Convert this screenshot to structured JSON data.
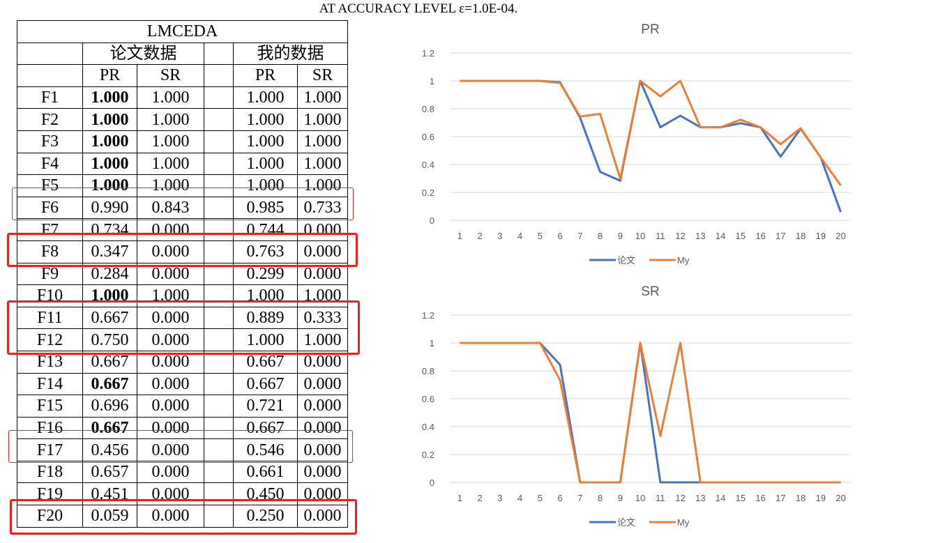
{
  "page_title": "AT ACCURACY LEVEL ε=1.0E-04.",
  "table": {
    "title": "LMCEDA",
    "group_paper": "论文数据",
    "group_mine": "我的数据",
    "col_pr": "PR",
    "col_sr": "SR",
    "rows": [
      {
        "fn": "F1",
        "paper_pr": "1.000",
        "paper_sr": "1.000",
        "my_pr": "1.000",
        "my_sr": "1.000",
        "bold": true
      },
      {
        "fn": "F2",
        "paper_pr": "1.000",
        "paper_sr": "1.000",
        "my_pr": "1.000",
        "my_sr": "1.000",
        "bold": true
      },
      {
        "fn": "F3",
        "paper_pr": "1.000",
        "paper_sr": "1.000",
        "my_pr": "1.000",
        "my_sr": "1.000",
        "bold": true
      },
      {
        "fn": "F4",
        "paper_pr": "1.000",
        "paper_sr": "1.000",
        "my_pr": "1.000",
        "my_sr": "1.000",
        "bold": true
      },
      {
        "fn": "F5",
        "paper_pr": "1.000",
        "paper_sr": "1.000",
        "my_pr": "1.000",
        "my_sr": "1.000",
        "bold": true
      },
      {
        "fn": "F6",
        "paper_pr": "0.990",
        "paper_sr": "0.843",
        "my_pr": "0.985",
        "my_sr": "0.733",
        "bold": false
      },
      {
        "fn": "F7",
        "paper_pr": "0.734",
        "paper_sr": "0.000",
        "my_pr": "0.744",
        "my_sr": "0.000",
        "bold": false
      },
      {
        "fn": "F8",
        "paper_pr": "0.347",
        "paper_sr": "0.000",
        "my_pr": "0.763",
        "my_sr": "0.000",
        "bold": false
      },
      {
        "fn": "F9",
        "paper_pr": "0.284",
        "paper_sr": "0.000",
        "my_pr": "0.299",
        "my_sr": "0.000",
        "bold": false
      },
      {
        "fn": "F10",
        "paper_pr": "1.000",
        "paper_sr": "1.000",
        "my_pr": "1.000",
        "my_sr": "1.000",
        "bold": true
      },
      {
        "fn": "F11",
        "paper_pr": "0.667",
        "paper_sr": "0.000",
        "my_pr": "0.889",
        "my_sr": "0.333",
        "bold": false
      },
      {
        "fn": "F12",
        "paper_pr": "0.750",
        "paper_sr": "0.000",
        "my_pr": "1.000",
        "my_sr": "1.000",
        "bold": false
      },
      {
        "fn": "F13",
        "paper_pr": "0.667",
        "paper_sr": "0.000",
        "my_pr": "0.667",
        "my_sr": "0.000",
        "bold": false
      },
      {
        "fn": "F14",
        "paper_pr": "0.667",
        "paper_sr": "0.000",
        "my_pr": "0.667",
        "my_sr": "0.000",
        "bold": true
      },
      {
        "fn": "F15",
        "paper_pr": "0.696",
        "paper_sr": "0.000",
        "my_pr": "0.721",
        "my_sr": "0.000",
        "bold": false
      },
      {
        "fn": "F16",
        "paper_pr": "0.667",
        "paper_sr": "0.000",
        "my_pr": "0.667",
        "my_sr": "0.000",
        "bold": true
      },
      {
        "fn": "F17",
        "paper_pr": "0.456",
        "paper_sr": "0.000",
        "my_pr": "0.546",
        "my_sr": "0.000",
        "bold": false
      },
      {
        "fn": "F18",
        "paper_pr": "0.657",
        "paper_sr": "0.000",
        "my_pr": "0.661",
        "my_sr": "0.000",
        "bold": false
      },
      {
        "fn": "F19",
        "paper_pr": "0.451",
        "paper_sr": "0.000",
        "my_pr": "0.450",
        "my_sr": "0.000",
        "bold": false
      },
      {
        "fn": "F20",
        "paper_pr": "0.059",
        "paper_sr": "0.000",
        "my_pr": "0.250",
        "my_sr": "0.000",
        "bold": false
      }
    ]
  },
  "highlight_color": "#e8231f",
  "chart_data": [
    {
      "type": "line",
      "title": "PR",
      "x": [
        1,
        2,
        3,
        4,
        5,
        6,
        7,
        8,
        9,
        10,
        11,
        12,
        13,
        14,
        15,
        16,
        17,
        18,
        19,
        20
      ],
      "ylim": [
        0,
        1.2
      ],
      "yticks": [
        "0",
        "0.2",
        "0.4",
        "0.6",
        "0.8",
        "1",
        "1.2"
      ],
      "grid": true,
      "legend": "bottom",
      "series": [
        {
          "name": "论文",
          "color": "#4472c4",
          "values": [
            1,
            1,
            1,
            1,
            1,
            0.99,
            0.734,
            0.347,
            0.284,
            1,
            0.667,
            0.75,
            0.667,
            0.667,
            0.696,
            0.667,
            0.456,
            0.657,
            0.451,
            0.059
          ]
        },
        {
          "name": "My",
          "color": "#ed7d31",
          "values": [
            1,
            1,
            1,
            1,
            1,
            0.985,
            0.744,
            0.763,
            0.299,
            1,
            0.889,
            1,
            0.667,
            0.667,
            0.721,
            0.667,
            0.546,
            0.661,
            0.45,
            0.25
          ]
        }
      ]
    },
    {
      "type": "line",
      "title": "SR",
      "x": [
        1,
        2,
        3,
        4,
        5,
        6,
        7,
        8,
        9,
        10,
        11,
        12,
        13,
        14,
        15,
        16,
        17,
        18,
        19,
        20
      ],
      "ylim": [
        0,
        1.2
      ],
      "yticks": [
        "0",
        "0.2",
        "0.4",
        "0.6",
        "0.8",
        "1",
        "1.2"
      ],
      "grid": true,
      "legend": "bottom",
      "series": [
        {
          "name": "论文",
          "color": "#4472c4",
          "values": [
            1,
            1,
            1,
            1,
            1,
            0.843,
            0,
            0,
            0,
            1,
            0,
            0,
            0,
            0,
            0,
            0,
            0,
            0,
            0,
            0
          ]
        },
        {
          "name": "My",
          "color": "#ed7d31",
          "values": [
            1,
            1,
            1,
            1,
            1,
            0.733,
            0,
            0,
            0,
            1,
            0.333,
            1,
            0,
            0,
            0,
            0,
            0,
            0,
            0,
            0
          ]
        }
      ]
    }
  ]
}
